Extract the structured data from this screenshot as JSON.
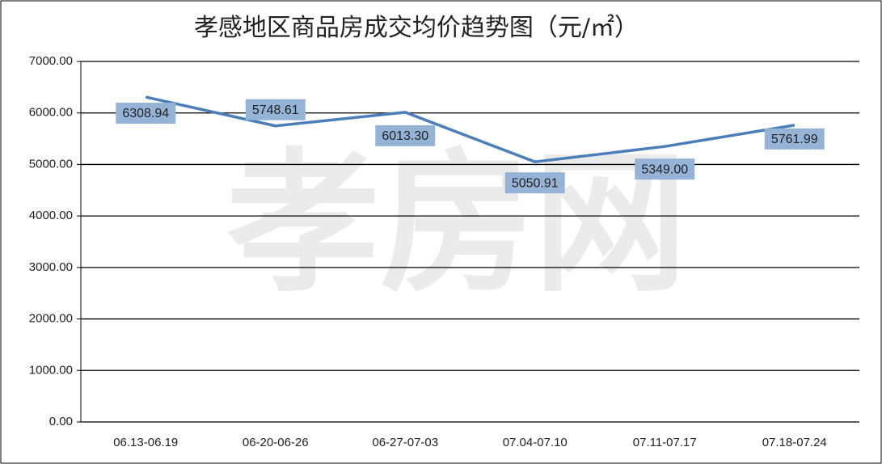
{
  "chart_data": {
    "type": "line",
    "title": "孝感地区商品房成交均价趋势图（元/㎡）",
    "watermark": "孝房网",
    "categories": [
      "06.13-06.19",
      "06-20-06-26",
      "06-27-07-03",
      "07.04-07.10",
      "07.11-07.17",
      "07.18-07.24"
    ],
    "values": [
      6308.94,
      5748.61,
      6013.3,
      5050.91,
      5349.0,
      5761.99
    ],
    "value_labels": [
      "6308.94",
      "5748.61",
      "6013.30",
      "5050.91",
      "5349.00",
      "5761.99"
    ],
    "color": "#4a7ebb",
    "ylim": [
      0,
      7000
    ],
    "yticks": [
      {
        "value": 0,
        "label": "0.00"
      },
      {
        "value": 1000,
        "label": "1000.00"
      },
      {
        "value": 2000,
        "label": "2000.00"
      },
      {
        "value": 3000,
        "label": "3000.00"
      },
      {
        "value": 4000,
        "label": "4000.00"
      },
      {
        "value": 5000,
        "label": "5000.00"
      },
      {
        "value": 6000,
        "label": "6000.00"
      },
      {
        "value": 7000,
        "label": "7000.00"
      }
    ],
    "grid": true
  }
}
